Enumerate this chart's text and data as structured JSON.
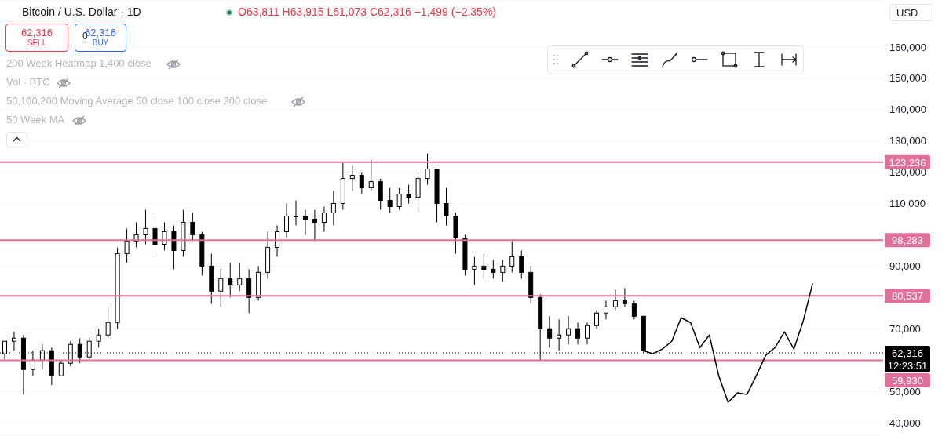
{
  "chart_data": {
    "type": "candlestick",
    "title": "Bitcoin / U.S. Dollar · 1D",
    "categories": [
      null,
      null,
      null,
      null,
      null,
      null,
      null,
      null,
      null,
      null,
      null,
      null,
      null,
      null,
      null,
      null,
      null,
      null,
      null,
      null,
      null,
      null,
      null,
      null,
      null,
      null,
      null,
      null,
      null,
      null,
      null,
      null,
      null,
      null,
      null,
      null,
      null,
      null,
      null,
      null,
      null,
      null,
      null,
      null,
      null,
      null,
      null,
      null,
      null,
      null,
      null,
      null,
      null,
      null,
      null,
      null,
      null,
      null,
      null,
      null,
      null,
      null,
      null,
      null,
      null,
      null,
      null,
      null,
      null,
      null,
      null,
      null,
      null,
      null,
      null,
      null,
      null,
      null,
      null,
      null,
      null,
      null,
      null,
      null,
      null,
      null,
      null,
      null,
      null,
      null,
      null,
      null,
      null,
      null
    ],
    "color": "#000000",
    "ohlc": [
      [
        62000,
        66000,
        60000,
        66000
      ],
      [
        66000,
        69000,
        63000,
        67000
      ],
      [
        67000,
        68000,
        49000,
        57000
      ],
      [
        57000,
        63000,
        55000,
        60000
      ],
      [
        60000,
        65000,
        57000,
        63000
      ],
      [
        63000,
        64000,
        52000,
        55000
      ],
      [
        55000,
        60000,
        55000,
        59000
      ],
      [
        59000,
        66000,
        58000,
        65000
      ],
      [
        65000,
        67000,
        59000,
        61000
      ],
      [
        61000,
        67000,
        60000,
        66000
      ],
      [
        66000,
        70000,
        64000,
        68000
      ],
      [
        68000,
        77000,
        67000,
        72000
      ],
      [
        72000,
        96000,
        70000,
        94000
      ],
      [
        94000,
        102000,
        91000,
        98000
      ],
      [
        98000,
        104000,
        96000,
        100000
      ],
      [
        100000,
        108000,
        97000,
        102000
      ],
      [
        102000,
        106000,
        94000,
        97000
      ],
      [
        97000,
        104000,
        95000,
        101000
      ],
      [
        101000,
        103000,
        89000,
        95000
      ],
      [
        95000,
        108000,
        93000,
        104000
      ],
      [
        104000,
        107000,
        98000,
        100000
      ],
      [
        100000,
        101000,
        87000,
        90000
      ],
      [
        90000,
        94000,
        78000,
        82000
      ],
      [
        82000,
        89000,
        77000,
        86000
      ],
      [
        86000,
        91000,
        80000,
        84000
      ],
      [
        84000,
        91000,
        82000,
        86000
      ],
      [
        86000,
        89000,
        75000,
        80000
      ],
      [
        80000,
        90000,
        79000,
        88000
      ],
      [
        88000,
        101000,
        86000,
        96000
      ],
      [
        96000,
        103000,
        93000,
        101000
      ],
      [
        101000,
        110000,
        99000,
        106000
      ],
      [
        106000,
        111000,
        103000,
        106000
      ],
      [
        106000,
        108000,
        100000,
        105000
      ],
      [
        105000,
        108000,
        98000,
        104000
      ],
      [
        104000,
        109000,
        101000,
        107000
      ],
      [
        107000,
        114000,
        103000,
        110000
      ],
      [
        110000,
        123000,
        108000,
        118000
      ],
      [
        118000,
        122000,
        114000,
        119000
      ],
      [
        119000,
        120000,
        113000,
        115000
      ],
      [
        115000,
        124000,
        114000,
        117000
      ],
      [
        117000,
        118000,
        108000,
        111000
      ],
      [
        111000,
        115000,
        107000,
        109000
      ],
      [
        109000,
        115000,
        108000,
        113000
      ],
      [
        113000,
        116000,
        110000,
        112000
      ],
      [
        112000,
        120000,
        107000,
        118000
      ],
      [
        118000,
        126000,
        116000,
        121000
      ],
      [
        121000,
        121000,
        104000,
        110000
      ],
      [
        110000,
        115000,
        103000,
        106000
      ],
      [
        106000,
        107000,
        94000,
        99000
      ],
      [
        99000,
        100000,
        87000,
        89000
      ],
      [
        89000,
        93000,
        84000,
        90000
      ],
      [
        90000,
        94000,
        86000,
        89000
      ],
      [
        89000,
        92000,
        86000,
        88000
      ],
      [
        88000,
        92000,
        85000,
        90000
      ],
      [
        90000,
        98000,
        88000,
        93000
      ],
      [
        93000,
        95000,
        86000,
        88000
      ],
      [
        88000,
        90000,
        78000,
        80000
      ],
      [
        80000,
        81000,
        60000,
        70000
      ],
      [
        70000,
        74000,
        64000,
        67000
      ],
      [
        67000,
        73000,
        63000,
        68000
      ],
      [
        68000,
        74000,
        65000,
        70000
      ],
      [
        70000,
        72000,
        65000,
        67000
      ],
      [
        67000,
        72000,
        65000,
        71000
      ],
      [
        71000,
        76000,
        70000,
        75000
      ],
      [
        75000,
        79000,
        73000,
        77000
      ],
      [
        77000,
        82500,
        76000,
        79000
      ],
      [
        79000,
        83000,
        77000,
        78000
      ],
      [
        78000,
        79000,
        73000,
        74000
      ],
      [
        74000,
        74000,
        62000,
        63000
      ],
      null,
      null,
      null,
      null,
      null,
      null,
      null,
      null,
      null,
      null,
      null,
      null,
      null,
      null,
      null,
      null,
      null,
      null,
      null,
      null,
      null,
      null,
      null,
      null,
      null
    ],
    "series": [
      {
        "type": "line",
        "color": "#000000",
        "values": [
          null,
          null,
          null,
          null,
          null,
          null,
          null,
          null,
          null,
          null,
          null,
          null,
          null,
          null,
          null,
          null,
          null,
          null,
          null,
          null,
          null,
          null,
          null,
          null,
          null,
          null,
          null,
          null,
          null,
          null,
          null,
          null,
          null,
          null,
          null,
          null,
          null,
          null,
          null,
          null,
          null,
          null,
          null,
          null,
          null,
          null,
          null,
          null,
          null,
          null,
          null,
          null,
          null,
          null,
          null,
          null,
          null,
          null,
          null,
          null,
          null,
          null,
          null,
          null,
          null,
          null,
          null,
          null,
          63000,
          62000,
          63500,
          66000,
          73500,
          72000,
          64000,
          68000,
          55000,
          46500,
          49500,
          49000,
          55000,
          61500,
          64000,
          69000,
          63500,
          72500,
          84500,
          null,
          null,
          null,
          null,
          null,
          null,
          null
        ]
      }
    ],
    "ylim": [
      36000,
      175000
    ],
    "yticks": [
      {
        "value": 40000,
        "label": "40,000"
      },
      {
        "value": 50000,
        "label": "50,000"
      },
      {
        "value": 70000,
        "label": "70,000"
      },
      {
        "value": 90000,
        "label": "90,000"
      },
      {
        "value": 110000,
        "label": "110,000"
      },
      {
        "value": 120000,
        "label": "120,000"
      },
      {
        "value": 130000,
        "label": "130,000"
      },
      {
        "value": 140000,
        "label": "140,000"
      },
      {
        "value": 150000,
        "label": "150,000"
      },
      {
        "value": 160000,
        "label": "160,000"
      }
    ],
    "tick_labels": "y",
    "grid": "y",
    "marker": "none",
    "line_style": "solid",
    "ref_lines": [
      {
        "axis": "y",
        "value": 123236,
        "label": "123,236",
        "color": "#e0709a",
        "line_style": "solid"
      },
      {
        "axis": "y",
        "value": 98283,
        "label": "98,283",
        "color": "#e0709a",
        "line_style": "solid"
      },
      {
        "axis": "y",
        "value": 80537,
        "label": "80,537",
        "color": "#e0709a",
        "line_style": "solid"
      },
      {
        "axis": "y",
        "value": 59930,
        "label": "59,930",
        "color": "#e0709a",
        "line_style": "solid"
      },
      {
        "axis": "y",
        "value": 62316,
        "label": "62,316",
        "color": "#000000",
        "line_style": "dotted"
      }
    ],
    "annotations": [
      "O63,811 H63,915 L61,073 C62,316 −1,499 (−2.35%)",
      "62,316",
      "SELL",
      "0",
      "62,316",
      "BUY",
      "200 Week Heatmap 1,400 close",
      "Vol · BTC",
      "50,100,200 Moving Average 50 close 100 close 200 close",
      "50 Week MA",
      "USD",
      "12:23:51"
    ]
  }
}
